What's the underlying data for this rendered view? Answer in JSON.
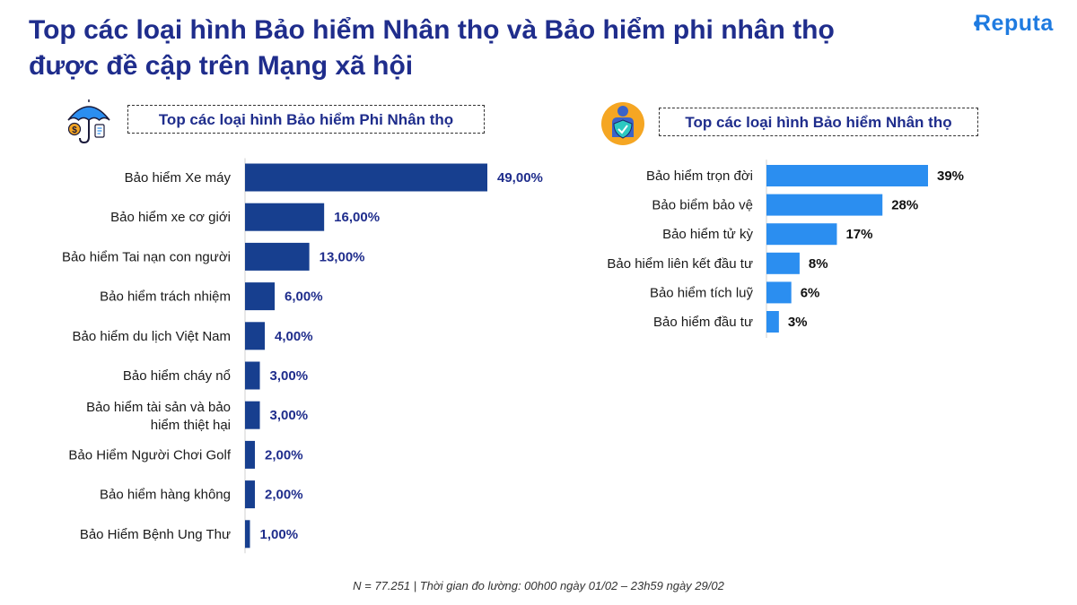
{
  "header": {
    "title_line1": "Top các loại hình Bảo hiểm Nhân thọ và Bảo hiểm phi nhân thọ",
    "title_line2": "được đề cập trên Mạng xã hội",
    "logo_text": "Reputa"
  },
  "colors": {
    "title": "#1f2d8c",
    "bar_left": "#173f8f",
    "bar_right": "#2b8ef0",
    "logo": "#1f7be0"
  },
  "chart_data": [
    {
      "type": "bar",
      "orientation": "horizontal",
      "title": "Top các loại hình Bảo hiểm Phi Nhân thọ",
      "categories": [
        "Bảo hiểm Xe máy",
        "Bảo hiểm xe cơ giới",
        "Bảo hiểm Tai nạn con người",
        "Bảo hiểm trách nhiệm",
        "Bảo hiểm du lịch Việt Nam",
        "Bảo hiểm cháy nổ",
        "Bảo hiểm tài sản và bảo hiểm thiệt hại",
        "Bảo Hiểm Người Chơi Golf",
        "Bảo hiểm hàng không",
        "Bảo Hiểm Bệnh Ung Thư"
      ],
      "category_lines": [
        [
          "Bảo hiểm Xe máy"
        ],
        [
          "Bảo hiểm xe cơ giới"
        ],
        [
          "Bảo hiểm Tai nạn con người"
        ],
        [
          "Bảo hiểm trách nhiệm"
        ],
        [
          "Bảo hiểm du lịch Việt Nam"
        ],
        [
          "Bảo hiểm cháy nổ"
        ],
        [
          "Bảo hiểm tài sản và bảo",
          "hiểm thiệt hại"
        ],
        [
          "Bảo Hiểm Người Chơi Golf"
        ],
        [
          "Bảo hiểm hàng không"
        ],
        [
          "Bảo Hiểm Bệnh Ung Thư"
        ]
      ],
      "values": [
        49,
        16,
        13,
        6,
        4,
        3,
        3,
        2,
        2,
        1
      ],
      "labels": [
        "49,00%",
        "16,00%",
        "13,00%",
        "6,00%",
        "4,00%",
        "3,00%",
        "3,00%",
        "2,00%",
        "2,00%",
        "1,00%"
      ],
      "unit": "%",
      "xlim": [
        0,
        49
      ]
    },
    {
      "type": "bar",
      "orientation": "horizontal",
      "title": "Top các loại hình Bảo hiểm Nhân thọ",
      "categories": [
        "Bảo hiểm trọn đời",
        "Bảo biểm bảo vệ",
        "Bảo hiểm tử kỳ",
        "Bảo hiểm liên kết đầu tư",
        "Bảo hiểm tích luỹ",
        "Bảo hiểm đầu tư"
      ],
      "category_lines": [
        [
          "Bảo hiểm trọn đời"
        ],
        [
          "Bảo biểm bảo vệ"
        ],
        [
          "Bảo hiểm tử kỳ"
        ],
        [
          "Bảo hiểm liên kết đầu tư"
        ],
        [
          "Bảo hiểm tích luỹ"
        ],
        [
          "Bảo hiểm đầu tư"
        ]
      ],
      "values": [
        39,
        28,
        17,
        8,
        6,
        3
      ],
      "labels": [
        "39%",
        "28%",
        "17%",
        "8%",
        "6%",
        "3%"
      ],
      "unit": "%",
      "xlim": [
        0,
        39
      ]
    }
  ],
  "footnote": "N = 77.251 | Thời gian đo lường: 00h00 ngày 01/02 – 23h59 ngày 29/02"
}
